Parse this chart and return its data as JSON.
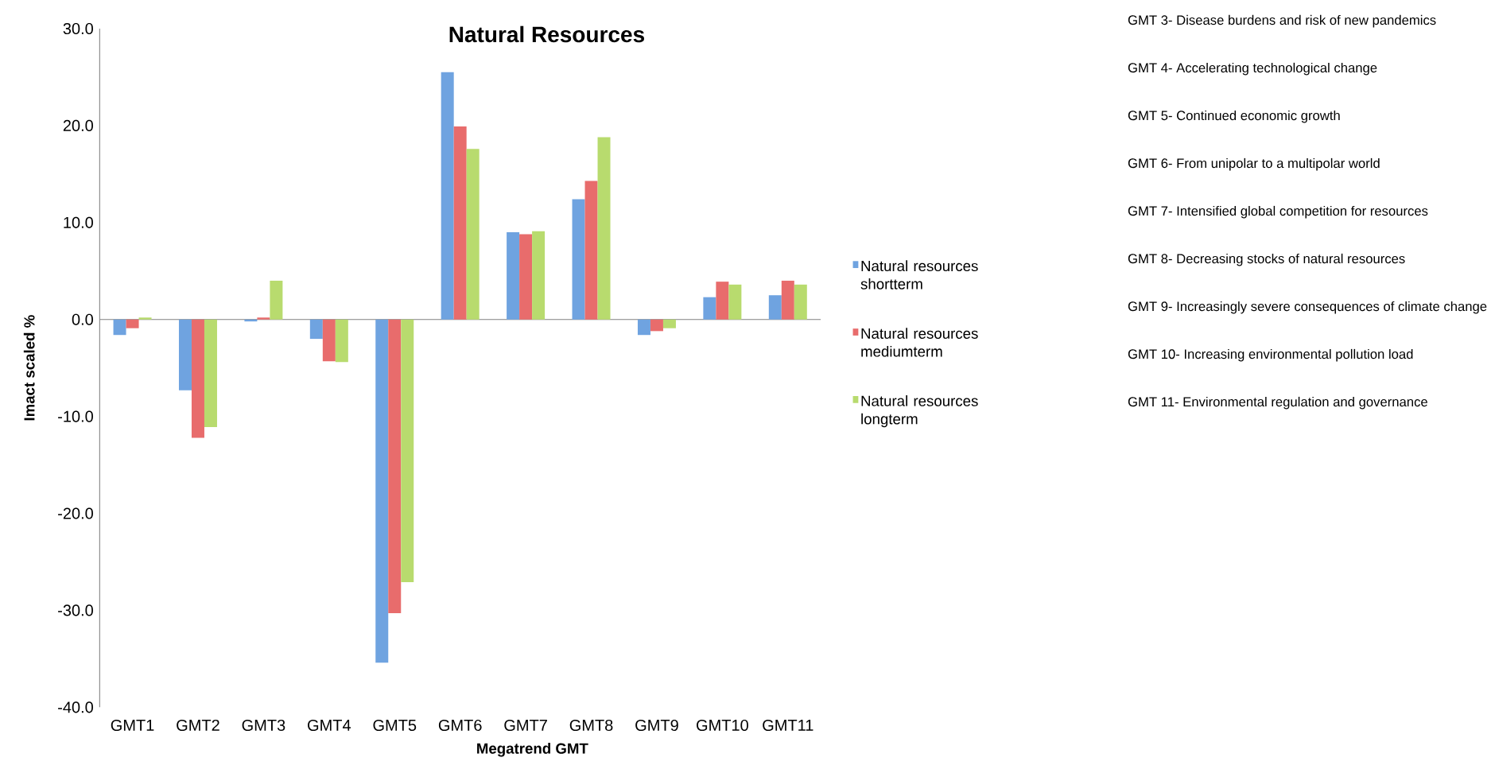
{
  "chart_data": {
    "type": "bar",
    "title": "Natural Resources",
    "xlabel": "Megatrend GMT",
    "ylabel": "Imact scaled %",
    "categories": [
      "GMT1",
      "GMT2",
      "GMT3",
      "GMT4",
      "GMT5",
      "GMT6",
      "GMT7",
      "GMT8",
      "GMT9",
      "GMT10",
      "GMT11"
    ],
    "series": [
      {
        "name": "Natural resources shortterm",
        "color": "#6fa3e0",
        "values": [
          -1.6,
          -7.3,
          -0.2,
          -2.0,
          -35.4,
          25.5,
          9.0,
          12.4,
          -1.6,
          2.3,
          2.5
        ]
      },
      {
        "name": "Natural resources mediumterm",
        "color": "#e86c6c",
        "values": [
          -0.9,
          -12.2,
          0.2,
          -4.3,
          -30.3,
          19.9,
          8.8,
          14.3,
          -1.2,
          3.9,
          4.0
        ]
      },
      {
        "name": "Natural resources longterm",
        "color": "#b8db6e",
        "values": [
          0.2,
          -11.1,
          4.0,
          -4.4,
          -27.1,
          17.6,
          9.1,
          18.8,
          -0.9,
          3.6,
          3.6
        ]
      }
    ],
    "ylim": [
      -40,
      30
    ],
    "yticks": [
      {
        "value": -40,
        "label": "-40.0"
      },
      {
        "value": -30,
        "label": "-30.0"
      },
      {
        "value": -20,
        "label": "-20.0"
      },
      {
        "value": -10,
        "label": "-10.0"
      },
      {
        "value": 0,
        "label": "0.0"
      },
      {
        "value": 10,
        "label": "10.0"
      },
      {
        "value": 20,
        "label": "20.0"
      },
      {
        "value": 30,
        "label": "30.0"
      }
    ],
    "legend": "right",
    "annotations": [
      "GMT 3- Disease burdens and risk of new pandemics",
      "GMT 4- Accelerating technological change",
      "GMT 5- Continued economic growth",
      "GMT 6- From unipolar to a multipolar world",
      "GMT 7- Intensified global competition for resources",
      "GMT 8- Decreasing stocks of natural resources",
      "GMT 9- Increasingly severe consequences of climate change",
      "GMT 10- Increasing environmental pollution load",
      "GMT 11- Environmental regulation and governance"
    ]
  }
}
